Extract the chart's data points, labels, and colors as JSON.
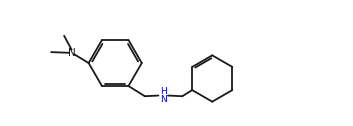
{
  "bg_color": "#ffffff",
  "line_color": "#1a1a1a",
  "nh_color": "#0000cc",
  "n_color": "#1a1a1a",
  "lw": 1.3,
  "fig_w": 3.53,
  "fig_h": 1.26,
  "dpi": 100,
  "xlim": [
    0.0,
    10.0
  ],
  "ylim": [
    0.5,
    4.2
  ]
}
